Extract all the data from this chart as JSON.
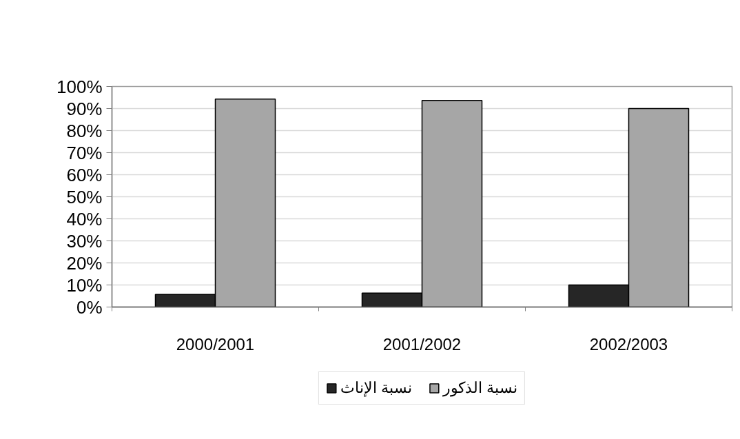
{
  "chart_data": {
    "type": "bar",
    "categories": [
      "2000/2001",
      "2001/2002",
      "2002/2003"
    ],
    "series": [
      {
        "name": "نسبة الإناث",
        "color": "#262626",
        "values": [
          5.7,
          6.3,
          10
        ]
      },
      {
        "name": "نسبة الذكور",
        "color": "#a6a6a6",
        "values": [
          94.3,
          93.7,
          90
        ]
      }
    ],
    "ylim": [
      0,
      100
    ],
    "yticks": [
      {
        "value": 0,
        "label": "0%"
      },
      {
        "value": 10,
        "label": "10%"
      },
      {
        "value": 20,
        "label": "20%"
      },
      {
        "value": 30,
        "label": "30%"
      },
      {
        "value": 40,
        "label": "40%"
      },
      {
        "value": 50,
        "label": "50%"
      },
      {
        "value": 60,
        "label": "60%"
      },
      {
        "value": 70,
        "label": "70%"
      },
      {
        "value": 80,
        "label": "80%"
      },
      {
        "value": 90,
        "label": "90%"
      },
      {
        "value": 100,
        "label": "100%"
      }
    ],
    "grid": "y",
    "legend": "bottom"
  }
}
